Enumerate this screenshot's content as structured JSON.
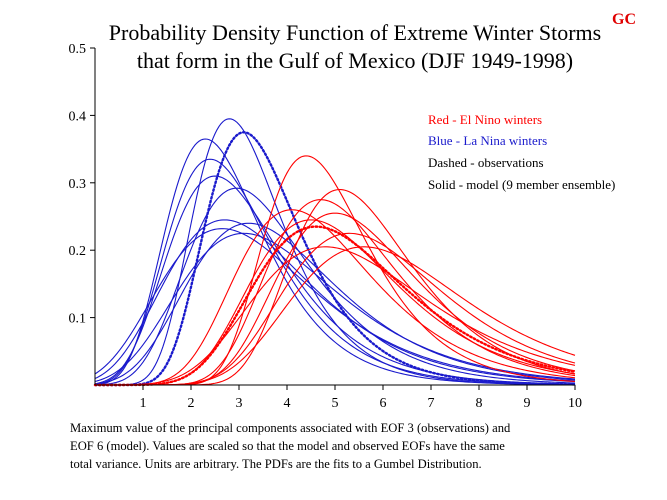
{
  "badge": "GC",
  "chart_data": {
    "type": "line",
    "title": "Probability Density Function of Extreme Winter Storms that form in the Gulf of Mexico (DJF 1949-1998)",
    "title_lines": [
      "Probability Density Function of Extreme Winter Storms",
      "that form in the Gulf of Mexico (DJF 1949-1998)"
    ],
    "xlabel": "",
    "ylabel": "",
    "xlim": [
      0,
      10
    ],
    "ylim": [
      0,
      0.5
    ],
    "x_ticks": [
      1,
      2,
      3,
      4,
      5,
      6,
      7,
      8,
      9,
      10
    ],
    "y_ticks": [
      0.1,
      0.2,
      0.3,
      0.4,
      0.5
    ],
    "y_tick_labels": [
      "0.1",
      "0.2",
      "0.3",
      "0.4",
      "0.5"
    ],
    "distribution": "Gumbel",
    "colors": {
      "el_nino": "#ff0000",
      "la_nina": "#1a1acc",
      "text": "#000000"
    },
    "legend": [
      {
        "text": "Red - El Nino winters",
        "color": "#ff0000"
      },
      {
        "text": "Blue - La Nina winters",
        "color": "#1a1acc"
      },
      {
        "text": "Dashed - observations",
        "color": "#000000"
      },
      {
        "text": "Solid - model  (9 member ensemble)",
        "color": "#000000"
      }
    ],
    "series": [
      {
        "name": "La Nina model 1",
        "group": "la_nina",
        "style": "solid",
        "mode": 2.3,
        "peak": 0.365
      },
      {
        "name": "La Nina model 2",
        "group": "la_nina",
        "style": "solid",
        "mode": 2.8,
        "peak": 0.395
      },
      {
        "name": "La Nina model 3",
        "group": "la_nina",
        "style": "solid",
        "mode": 2.4,
        "peak": 0.335
      },
      {
        "name": "La Nina model 4",
        "group": "la_nina",
        "style": "solid",
        "mode": 2.5,
        "peak": 0.31
      },
      {
        "name": "La Nina model 5",
        "group": "la_nina",
        "style": "solid",
        "mode": 2.95,
        "peak": 0.292
      },
      {
        "name": "La Nina model 6",
        "group": "la_nina",
        "style": "solid",
        "mode": 2.7,
        "peak": 0.245
      },
      {
        "name": "La Nina model 7",
        "group": "la_nina",
        "style": "solid",
        "mode": 3.2,
        "peak": 0.24
      },
      {
        "name": "La Nina model 8",
        "group": "la_nina",
        "style": "solid",
        "mode": 3.1,
        "peak": 0.225
      },
      {
        "name": "La Nina model 9",
        "group": "la_nina",
        "style": "solid",
        "mode": 2.65,
        "peak": 0.232
      },
      {
        "name": "La Nina observations",
        "group": "la_nina",
        "style": "dashed",
        "mode": 3.1,
        "peak": 0.375
      },
      {
        "name": "El Nino model 1",
        "group": "el_nino",
        "style": "solid",
        "mode": 4.4,
        "peak": 0.34
      },
      {
        "name": "El Nino model 2",
        "group": "el_nino",
        "style": "solid",
        "mode": 5.1,
        "peak": 0.29
      },
      {
        "name": "El Nino model 3",
        "group": "el_nino",
        "style": "solid",
        "mode": 4.7,
        "peak": 0.275
      },
      {
        "name": "El Nino model 4",
        "group": "el_nino",
        "style": "solid",
        "mode": 4.1,
        "peak": 0.26
      },
      {
        "name": "El Nino model 5",
        "group": "el_nino",
        "style": "solid",
        "mode": 5.0,
        "peak": 0.255
      },
      {
        "name": "El Nino model 6",
        "group": "el_nino",
        "style": "solid",
        "mode": 4.5,
        "peak": 0.245
      },
      {
        "name": "El Nino model 7",
        "group": "el_nino",
        "style": "solid",
        "mode": 5.3,
        "peak": 0.225
      },
      {
        "name": "El Nino model 8",
        "group": "el_nino",
        "style": "solid",
        "mode": 4.8,
        "peak": 0.205
      },
      {
        "name": "El Nino model 9",
        "group": "el_nino",
        "style": "solid",
        "mode": 5.6,
        "peak": 0.205
      },
      {
        "name": "El Nino observations",
        "group": "el_nino",
        "style": "dashed",
        "mode": 4.6,
        "peak": 0.235
      }
    ]
  },
  "caption": [
    "Maximum value of the principal components  associated with EOF 3 (observations) and",
    "EOF 6 (model).  Values are scaled so that the model and observed EOFs have the same",
    "total variance.  Units are arbitrary.  The PDFs are the fits to a Gumbel Distribution."
  ]
}
